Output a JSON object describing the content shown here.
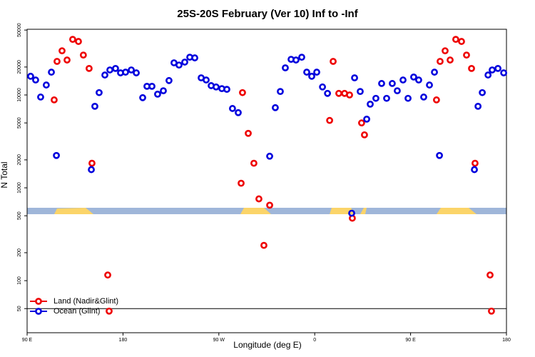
{
  "chart_data": {
    "type": "scatter",
    "title": "25S-20S February (Ver 10)   Inf to -Inf",
    "x_label": "Longitude (deg E)",
    "y_label": "N Total",
    "log_y": true,
    "legend": "bottom-left",
    "hline": 50,
    "xlim": [
      90,
      540
    ],
    "xticks": [
      {
        "value": 90,
        "label": "90 E"
      },
      {
        "value": 180,
        "label": "180"
      },
      {
        "value": 270,
        "label": "90 W"
      },
      {
        "value": 360,
        "label": "0"
      },
      {
        "value": 450,
        "label": "90 E"
      },
      {
        "value": 540,
        "label": "180"
      }
    ],
    "ylim": [
      27.5,
      51000
    ],
    "yticks": [
      50,
      100,
      200,
      500,
      1000,
      2000,
      5000,
      10000,
      20000,
      50000
    ],
    "series": [
      {
        "name": "Land (Nadir&Glint)",
        "color": "#ee0000",
        "x": [
          115.4,
          118.1,
          122.8,
          127.5,
          132.8,
          138.2,
          142.8,
          148.2,
          150.9,
          165.7,
          167,
          290.9,
          292.2,
          297.6,
          302.9,
          307.6,
          312.3,
          317.7,
          374,
          377.3,
          382.6,
          388,
          392.7,
          395.3,
          404,
          406.7,
          474.3,
          477.7,
          482.4,
          487.1,
          492.4,
          497.8,
          502.5,
          507.2,
          510.5,
          524.6,
          525.9
        ],
        "values": [
          8850,
          23000,
          29900,
          23800,
          39700,
          37700,
          26900,
          19300,
          1840,
          115,
          47,
          1120,
          10600,
          3860,
          1840,
          760,
          240,
          650,
          5320,
          23000,
          10400,
          10400,
          10000,
          471,
          5000,
          3720,
          8850,
          23000,
          29900,
          23800,
          39700,
          37700,
          26900,
          19300,
          1840,
          115,
          47
        ]
      },
      {
        "name": "Ocean (Glint)",
        "color": "#0000dd",
        "x": [
          93.3,
          98,
          102.7,
          108,
          112.8,
          117.5,
          150.3,
          153.6,
          157.6,
          163,
          167.7,
          173,
          177.7,
          182.4,
          187.8,
          192.5,
          198.5,
          202.5,
          207.2,
          212.5,
          217.9,
          223.2,
          227.9,
          232.6,
          238,
          242.7,
          247.4,
          253.4,
          258.1,
          262.8,
          267.4,
          272.8,
          277.5,
          282.8,
          288.2,
          317.7,
          323,
          327.7,
          332.4,
          337.8,
          342.4,
          347.8,
          352.5,
          357.2,
          361.9,
          367.3,
          372,
          394.7,
          397.4,
          402.7,
          408.8,
          412.1,
          417.4,
          422.8,
          427.5,
          432.8,
          437.5,
          442.9,
          447.6,
          452.9,
          457.6,
          462.3,
          467.7,
          472.4,
          477.1,
          509.9,
          513.3,
          517.3,
          522.7,
          526.6,
          532,
          537.4
        ],
        "values": [
          15900,
          14500,
          9500,
          12800,
          17600,
          2230,
          1570,
          7550,
          10600,
          16400,
          18600,
          19300,
          17300,
          17600,
          18600,
          17300,
          9350,
          12400,
          12400,
          10200,
          11100,
          14300,
          22200,
          21000,
          22600,
          25500,
          25100,
          15300,
          14500,
          12600,
          12200,
          11700,
          11500,
          7150,
          6450,
          2190,
          7300,
          10900,
          19600,
          24200,
          23800,
          25500,
          17600,
          15900,
          17600,
          12200,
          10400,
          533,
          15300,
          10900,
          5490,
          7960,
          9200,
          13300,
          9200,
          13300,
          11100,
          14500,
          9200,
          15600,
          14500,
          9500,
          12800,
          17600,
          2230,
          1570,
          7550,
          10600,
          16400,
          18600,
          19300,
          17300
        ]
      }
    ]
  }
}
